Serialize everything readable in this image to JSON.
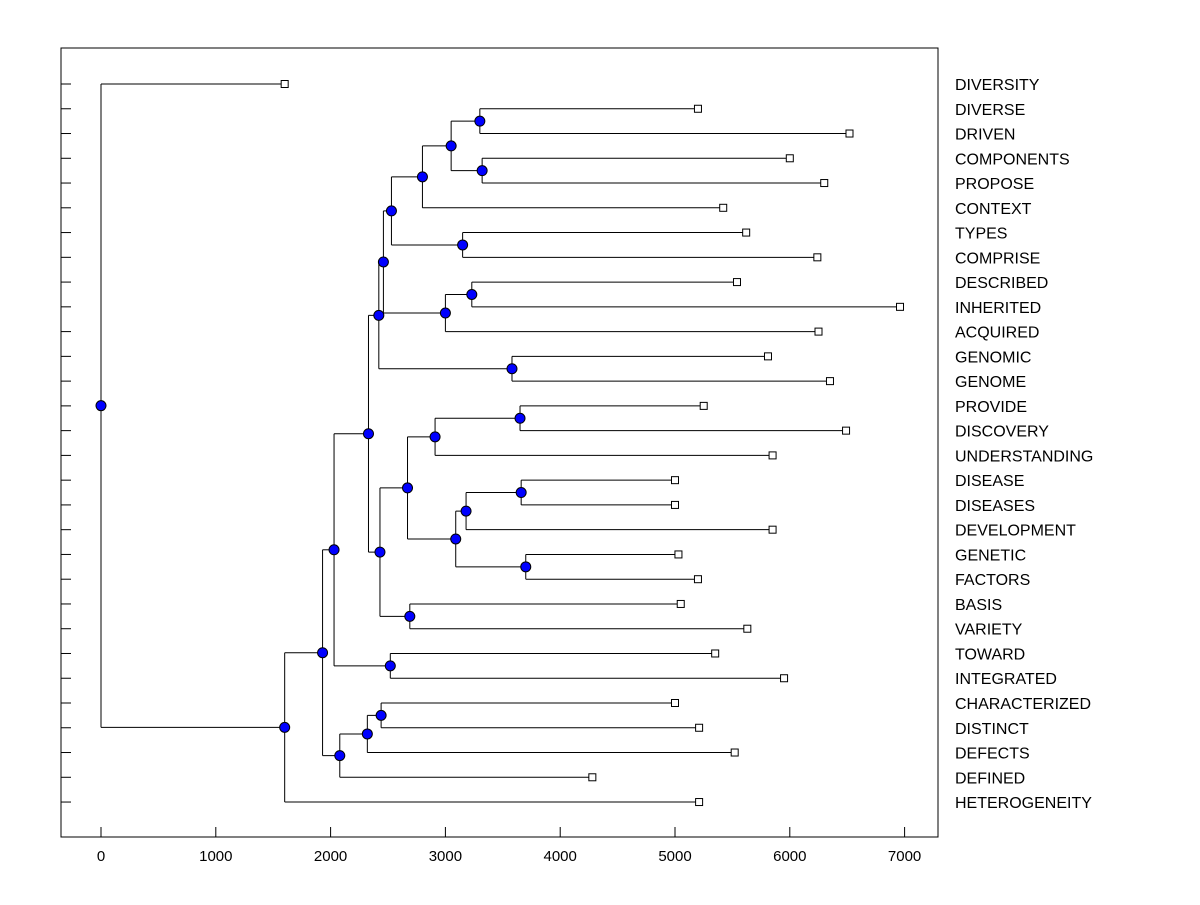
{
  "chart_data": {
    "type": "dendrogram",
    "title": "",
    "xlabel": "",
    "ylabel": "",
    "xlim": [
      -340,
      7300
    ],
    "xticks": [
      0,
      1000,
      2000,
      3000,
      4000,
      5000,
      6000,
      7000
    ],
    "xtick_labels": [
      "0",
      "1000",
      "2000",
      "3000",
      "4000",
      "5000",
      "6000",
      "7000"
    ],
    "grid": false,
    "colors": {
      "node": "#0000ff",
      "line": "#000000",
      "leaf": "#ffffff"
    },
    "leaves": [
      {
        "label": "DIVERSITY",
        "value": 1600
      },
      {
        "label": "DIVERSE",
        "value": 5200
      },
      {
        "label": "DRIVEN",
        "value": 6520
      },
      {
        "label": "COMPONENTS",
        "value": 6000
      },
      {
        "label": "PROPOSE",
        "value": 6300
      },
      {
        "label": "CONTEXT",
        "value": 5420
      },
      {
        "label": "TYPES",
        "value": 5620
      },
      {
        "label": "COMPRISE",
        "value": 6240
      },
      {
        "label": "DESCRIBED",
        "value": 5540
      },
      {
        "label": "INHERITED",
        "value": 6960
      },
      {
        "label": "ACQUIRED",
        "value": 6250
      },
      {
        "label": "GENOMIC",
        "value": 5810
      },
      {
        "label": "GENOME",
        "value": 6350
      },
      {
        "label": "PROVIDE",
        "value": 5250
      },
      {
        "label": "DISCOVERY",
        "value": 6490
      },
      {
        "label": "UNDERSTANDING",
        "value": 5850
      },
      {
        "label": "DISEASE",
        "value": 5000
      },
      {
        "label": "DISEASES",
        "value": 5000
      },
      {
        "label": "DEVELOPMENT",
        "value": 5850
      },
      {
        "label": "GENETIC",
        "value": 5030
      },
      {
        "label": "FACTORS",
        "value": 5200
      },
      {
        "label": "BASIS",
        "value": 5050
      },
      {
        "label": "VARIETY",
        "value": 5630
      },
      {
        "label": "TOWARD",
        "value": 5350
      },
      {
        "label": "INTEGRATED",
        "value": 5950
      },
      {
        "label": "CHARACTERIZED",
        "value": 5000
      },
      {
        "label": "DISTINCT",
        "value": 5210
      },
      {
        "label": "DEFECTS",
        "value": 5520
      },
      {
        "label": "DEFINED",
        "value": 4280
      },
      {
        "label": "HETEROGENEITY",
        "value": 5210
      }
    ],
    "merges": [
      {
        "id": "m1",
        "value": 3300,
        "children": [
          "DIVERSE",
          "DRIVEN"
        ]
      },
      {
        "id": "m2",
        "value": 3320,
        "children": [
          "COMPONENTS",
          "PROPOSE"
        ]
      },
      {
        "id": "m3",
        "value": 3050,
        "children": [
          "m1",
          "m2"
        ]
      },
      {
        "id": "m4",
        "value": 2800,
        "children": [
          "m3",
          "CONTEXT"
        ]
      },
      {
        "id": "m5",
        "value": 3150,
        "children": [
          "TYPES",
          "COMPRISE"
        ]
      },
      {
        "id": "m6",
        "value": 2530,
        "children": [
          "m4",
          "m5"
        ]
      },
      {
        "id": "m7",
        "value": 3230,
        "children": [
          "DESCRIBED",
          "INHERITED"
        ]
      },
      {
        "id": "m8",
        "value": 3000,
        "children": [
          "m7",
          "ACQUIRED"
        ]
      },
      {
        "id": "m9",
        "value": 2460,
        "children": [
          "m6",
          "m8"
        ]
      },
      {
        "id": "m10",
        "value": 3580,
        "children": [
          "GENOMIC",
          "GENOME"
        ]
      },
      {
        "id": "m11",
        "value": 2420,
        "children": [
          "m9",
          "m10"
        ]
      },
      {
        "id": "m12",
        "value": 3650,
        "children": [
          "PROVIDE",
          "DISCOVERY"
        ]
      },
      {
        "id": "m13",
        "value": 2910,
        "children": [
          "m12",
          "UNDERSTANDING"
        ]
      },
      {
        "id": "m14",
        "value": 3660,
        "children": [
          "DISEASE",
          "DISEASES"
        ]
      },
      {
        "id": "m15",
        "value": 3180,
        "children": [
          "m14",
          "DEVELOPMENT"
        ]
      },
      {
        "id": "m16",
        "value": 3700,
        "children": [
          "GENETIC",
          "FACTORS"
        ]
      },
      {
        "id": "m17",
        "value": 3090,
        "children": [
          "m15",
          "m16"
        ]
      },
      {
        "id": "m18",
        "value": 2670,
        "children": [
          "m13",
          "m17"
        ]
      },
      {
        "id": "m19",
        "value": 2690,
        "children": [
          "BASIS",
          "VARIETY"
        ]
      },
      {
        "id": "m20",
        "value": 2430,
        "children": [
          "m18",
          "m19"
        ]
      },
      {
        "id": "m21",
        "value": 2330,
        "children": [
          "m11",
          "m20"
        ]
      },
      {
        "id": "m22",
        "value": 2520,
        "children": [
          "TOWARD",
          "INTEGRATED"
        ]
      },
      {
        "id": "m23",
        "value": 2030,
        "children": [
          "m21",
          "m22"
        ]
      },
      {
        "id": "m24",
        "value": 2440,
        "children": [
          "CHARACTERIZED",
          "DISTINCT"
        ]
      },
      {
        "id": "m25",
        "value": 2320,
        "children": [
          "m24",
          "DEFECTS"
        ]
      },
      {
        "id": "m26",
        "value": 2080,
        "children": [
          "m25",
          "DEFINED"
        ]
      },
      {
        "id": "m27",
        "value": 1930,
        "children": [
          "m23",
          "m26"
        ]
      },
      {
        "id": "m28",
        "value": 1600,
        "children": [
          "m27",
          "HETEROGENEITY"
        ]
      },
      {
        "id": "root",
        "value": 0,
        "children": [
          "DIVERSITY",
          "m28"
        ]
      }
    ]
  }
}
